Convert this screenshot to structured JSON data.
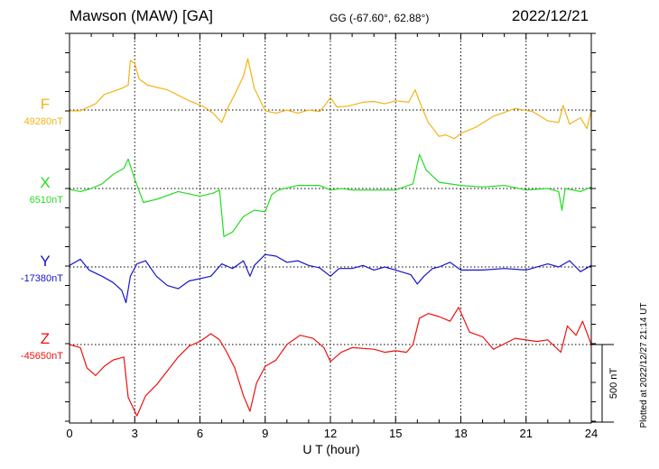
{
  "header": {
    "station": "Mawson (MAW)  [GA]",
    "coords": "GG (-67.60°,  62.88°)",
    "date": "2022/12/21"
  },
  "footer": {
    "plotted_at": "Plotted at 2022/12/27 21:14 UT"
  },
  "colors": {
    "F": "#f5b216",
    "X": "#22dd22",
    "Y": "#1515cc",
    "Z": "#ee1111"
  },
  "chart_data": {
    "type": "line",
    "xlabel": "U T (hour)",
    "xlim": [
      0,
      24
    ],
    "xticks": [
      0,
      3,
      6,
      9,
      12,
      15,
      18,
      21,
      24
    ],
    "scale_bar": {
      "label": "500 nT",
      "value_nT": 500
    },
    "series": [
      {
        "name": "F",
        "baseline": "49280nT",
        "points": [
          [
            0,
            -5
          ],
          [
            0.5,
            -5
          ],
          [
            0.8,
            15
          ],
          [
            1.2,
            40
          ],
          [
            1.6,
            100
          ],
          [
            2.0,
            120
          ],
          [
            2.4,
            140
          ],
          [
            2.7,
            160
          ],
          [
            2.8,
            320
          ],
          [
            3.0,
            300
          ],
          [
            3.2,
            200
          ],
          [
            3.6,
            160
          ],
          [
            4.5,
            130
          ],
          [
            5.5,
            60
          ],
          [
            6.2,
            20
          ],
          [
            6.6,
            -20
          ],
          [
            7.0,
            -80
          ],
          [
            7.3,
            20
          ],
          [
            7.6,
            100
          ],
          [
            8.0,
            220
          ],
          [
            8.2,
            330
          ],
          [
            8.5,
            140
          ],
          [
            9.0,
            -5
          ],
          [
            9.5,
            -20
          ],
          [
            10.0,
            0
          ],
          [
            10.5,
            -20
          ],
          [
            11.0,
            0
          ],
          [
            11.5,
            -10
          ],
          [
            11.8,
            40
          ],
          [
            12.0,
            80
          ],
          [
            12.3,
            20
          ],
          [
            12.8,
            25
          ],
          [
            13.5,
            50
          ],
          [
            14.0,
            55
          ],
          [
            14.5,
            40
          ],
          [
            15.0,
            60
          ],
          [
            15.6,
            50
          ],
          [
            15.9,
            130
          ],
          [
            16.2,
            20
          ],
          [
            16.5,
            -80
          ],
          [
            17.0,
            -170
          ],
          [
            17.3,
            -160
          ],
          [
            17.7,
            -185
          ],
          [
            18.0,
            -150
          ],
          [
            18.7,
            -110
          ],
          [
            19.5,
            -40
          ],
          [
            20.5,
            10
          ],
          [
            21.3,
            -10
          ],
          [
            22.0,
            -70
          ],
          [
            22.5,
            -80
          ],
          [
            22.7,
            30
          ],
          [
            23.0,
            -90
          ],
          [
            23.5,
            -50
          ],
          [
            23.8,
            -120
          ],
          [
            24.0,
            0
          ]
        ]
      },
      {
        "name": "X",
        "baseline": "6510nT",
        "points": [
          [
            0,
            -5
          ],
          [
            0.5,
            -20
          ],
          [
            1.0,
            0
          ],
          [
            1.5,
            30
          ],
          [
            2.0,
            90
          ],
          [
            2.5,
            130
          ],
          [
            2.7,
            190
          ],
          [
            3.0,
            60
          ],
          [
            3.4,
            -90
          ],
          [
            4.0,
            -70
          ],
          [
            5.0,
            -20
          ],
          [
            6.0,
            -50
          ],
          [
            6.6,
            -30
          ],
          [
            6.9,
            -10
          ],
          [
            7.1,
            -310
          ],
          [
            7.5,
            -280
          ],
          [
            8.0,
            -180
          ],
          [
            8.5,
            -140
          ],
          [
            9.0,
            -150
          ],
          [
            9.3,
            -40
          ],
          [
            9.6,
            -10
          ],
          [
            10.5,
            20
          ],
          [
            11.5,
            20
          ],
          [
            12.0,
            -10
          ],
          [
            12.5,
            0
          ],
          [
            13.0,
            -10
          ],
          [
            14.0,
            -10
          ],
          [
            15.0,
            -10
          ],
          [
            15.8,
            30
          ],
          [
            16.1,
            220
          ],
          [
            16.4,
            120
          ],
          [
            17.0,
            40
          ],
          [
            18.0,
            20
          ],
          [
            19.0,
            10
          ],
          [
            20.0,
            20
          ],
          [
            21.0,
            -10
          ],
          [
            22.0,
            0
          ],
          [
            22.5,
            -20
          ],
          [
            22.65,
            -140
          ],
          [
            22.8,
            0
          ],
          [
            23.5,
            -20
          ],
          [
            24.0,
            10
          ]
        ]
      },
      {
        "name": "Y",
        "baseline": "-17380nT",
        "points": [
          [
            0,
            10
          ],
          [
            0.5,
            50
          ],
          [
            0.9,
            -20
          ],
          [
            1.5,
            -60
          ],
          [
            2.0,
            -100
          ],
          [
            2.4,
            -150
          ],
          [
            2.6,
            -230
          ],
          [
            2.8,
            -60
          ],
          [
            3.1,
            20
          ],
          [
            3.5,
            40
          ],
          [
            4.0,
            -60
          ],
          [
            4.5,
            -120
          ],
          [
            5.0,
            -140
          ],
          [
            5.5,
            -90
          ],
          [
            6.5,
            -60
          ],
          [
            7.0,
            20
          ],
          [
            7.5,
            -10
          ],
          [
            8.0,
            40
          ],
          [
            8.3,
            -60
          ],
          [
            8.5,
            10
          ],
          [
            9.0,
            80
          ],
          [
            9.5,
            70
          ],
          [
            10.0,
            30
          ],
          [
            10.5,
            40
          ],
          [
            11.0,
            10
          ],
          [
            11.5,
            -5
          ],
          [
            12.0,
            -60
          ],
          [
            12.4,
            -10
          ],
          [
            13.0,
            -10
          ],
          [
            13.5,
            10
          ],
          [
            14.0,
            -20
          ],
          [
            14.5,
            0
          ],
          [
            15.0,
            -20
          ],
          [
            15.7,
            -50
          ],
          [
            16.0,
            -110
          ],
          [
            16.3,
            -60
          ],
          [
            16.7,
            -10
          ],
          [
            17.0,
            0
          ],
          [
            17.5,
            30
          ],
          [
            18.0,
            -20
          ],
          [
            19.0,
            -20
          ],
          [
            20.0,
            -10
          ],
          [
            21.0,
            -20
          ],
          [
            22.0,
            20
          ],
          [
            22.5,
            0
          ],
          [
            23.0,
            40
          ],
          [
            23.5,
            -30
          ],
          [
            24.0,
            10
          ]
        ]
      },
      {
        "name": "Z",
        "baseline": "-45650nT",
        "points": [
          [
            0,
            0
          ],
          [
            0.5,
            -20
          ],
          [
            0.8,
            -150
          ],
          [
            1.2,
            -200
          ],
          [
            1.6,
            -140
          ],
          [
            2.0,
            -100
          ],
          [
            2.5,
            -80
          ],
          [
            2.7,
            -340
          ],
          [
            3.1,
            -460
          ],
          [
            3.5,
            -330
          ],
          [
            4.0,
            -260
          ],
          [
            4.5,
            -170
          ],
          [
            5.0,
            -80
          ],
          [
            5.5,
            -10
          ],
          [
            6.0,
            20
          ],
          [
            6.5,
            70
          ],
          [
            6.9,
            30
          ],
          [
            7.2,
            -40
          ],
          [
            7.6,
            -150
          ],
          [
            8.0,
            -330
          ],
          [
            8.3,
            -430
          ],
          [
            8.6,
            -250
          ],
          [
            9.0,
            -140
          ],
          [
            9.5,
            -100
          ],
          [
            10.0,
            0
          ],
          [
            10.6,
            60
          ],
          [
            11.2,
            40
          ],
          [
            11.7,
            -20
          ],
          [
            12.0,
            -110
          ],
          [
            12.5,
            -50
          ],
          [
            13.0,
            -20
          ],
          [
            14.0,
            -30
          ],
          [
            14.5,
            -50
          ],
          [
            15.0,
            -40
          ],
          [
            15.5,
            -50
          ],
          [
            15.8,
            0
          ],
          [
            16.1,
            170
          ],
          [
            16.5,
            200
          ],
          [
            17.0,
            180
          ],
          [
            17.5,
            150
          ],
          [
            17.9,
            240
          ],
          [
            18.4,
            80
          ],
          [
            19.0,
            50
          ],
          [
            19.5,
            -30
          ],
          [
            20.5,
            40
          ],
          [
            21.5,
            20
          ],
          [
            22.0,
            30
          ],
          [
            22.6,
            -50
          ],
          [
            22.9,
            120
          ],
          [
            23.3,
            60
          ],
          [
            23.6,
            150
          ],
          [
            24.0,
            0
          ]
        ]
      }
    ]
  }
}
